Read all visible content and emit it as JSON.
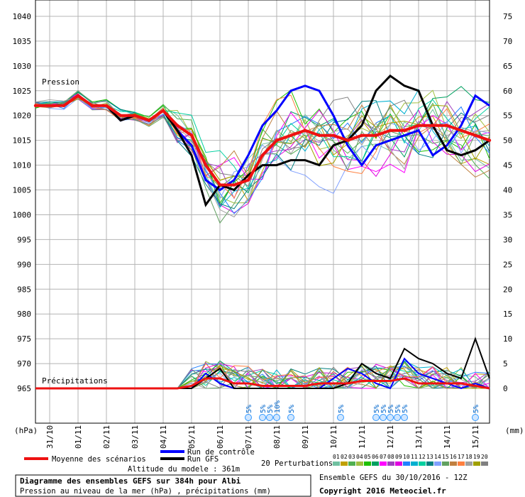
{
  "chart_data": {
    "type": "line",
    "left_axis": {
      "unit": "(hPa)",
      "ticks": [
        1040,
        1035,
        1030,
        1025,
        1020,
        1015,
        1010,
        1005,
        1000,
        995,
        990,
        985,
        980,
        975,
        970,
        965
      ],
      "ylim": [
        965,
        1040
      ]
    },
    "right_axis": {
      "unit": "(mm)",
      "ticks": [
        75,
        70,
        65,
        60,
        55,
        50,
        45,
        40,
        35,
        30,
        25,
        20,
        15,
        10,
        5,
        0
      ],
      "ylim": [
        0,
        75
      ]
    },
    "x_axis": {
      "unit": "hours",
      "xlim": [
        0,
        384
      ],
      "tick_labels": [
        "31/10",
        "01/11",
        "02/11",
        "03/11",
        "04/11",
        "05/11",
        "06/11",
        "07/11",
        "08/11",
        "09/11",
        "10/11",
        "11/11",
        "12/11",
        "13/11",
        "14/11",
        "15/11"
      ],
      "tick_hours": [
        12,
        36,
        60,
        84,
        108,
        132,
        156,
        180,
        204,
        228,
        252,
        276,
        300,
        324,
        348,
        372
      ]
    },
    "panel_labels": {
      "pressure": "Pression",
      "precip": "Précipitations"
    },
    "snow_markers": [
      {
        "hour": 180,
        "label": "5%"
      },
      {
        "hour": 192,
        "label": "5%"
      },
      {
        "hour": 198,
        "label": "5%"
      },
      {
        "hour": 204,
        "label": "10%"
      },
      {
        "hour": 216,
        "label": "5%"
      },
      {
        "hour": 258,
        "label": "5%"
      },
      {
        "hour": 288,
        "label": "5%"
      },
      {
        "hour": 294,
        "label": "5%"
      },
      {
        "hour": 300,
        "label": "5%"
      },
      {
        "hour": 306,
        "label": "5%"
      },
      {
        "hour": 312,
        "label": "5%"
      },
      {
        "hour": 372,
        "label": "5%"
      }
    ],
    "series": [
      {
        "name": "Moyenne des scénarios",
        "color": "#ee1111",
        "x": [
          0,
          12,
          24,
          36,
          48,
          60,
          72,
          84,
          96,
          108,
          120,
          132,
          144,
          156,
          168,
          180,
          192,
          204,
          216,
          228,
          240,
          252,
          264,
          276,
          288,
          300,
          312,
          324,
          336,
          348,
          360,
          372,
          384
        ],
        "values": [
          1022,
          1022,
          1022,
          1024,
          1022,
          1022,
          1020,
          1020,
          1019,
          1021,
          1018,
          1016,
          1010,
          1006,
          1006,
          1007,
          1012,
          1015,
          1016,
          1017,
          1016,
          1016,
          1015,
          1016,
          1016,
          1017,
          1017,
          1018,
          1018,
          1018,
          1017,
          1016,
          1015
        ],
        "precip": [
          0,
          0,
          0,
          0,
          0,
          0,
          0,
          0,
          0,
          0,
          0,
          0.5,
          2,
          2,
          1,
          1,
          0.5,
          0.5,
          0.5,
          0.5,
          1,
          1,
          1,
          1.5,
          1.5,
          1.5,
          2,
          1,
          1,
          1,
          1,
          0.5,
          0
        ]
      },
      {
        "name": "Run de contrôle",
        "color": "#0000ff",
        "x": [
          0,
          12,
          24,
          36,
          48,
          60,
          72,
          84,
          96,
          108,
          120,
          132,
          144,
          156,
          168,
          180,
          192,
          204,
          216,
          228,
          240,
          252,
          264,
          276,
          288,
          300,
          312,
          324,
          336,
          348,
          360,
          372,
          384
        ],
        "values": [
          1022,
          1022,
          1022,
          1024,
          1022,
          1022,
          1019,
          1020,
          1019,
          1021,
          1017,
          1014,
          1007,
          1005,
          1007,
          1012,
          1018,
          1021,
          1025,
          1026,
          1025,
          1020,
          1014,
          1010,
          1014,
          1015,
          1016,
          1017,
          1012,
          1014,
          1018,
          1024,
          1022
        ],
        "precip": [
          0,
          0,
          0,
          0,
          0,
          0,
          0,
          0,
          0,
          0,
          0,
          0,
          3,
          1,
          0,
          0,
          0,
          0,
          0,
          0,
          0,
          2,
          4,
          3,
          1,
          0,
          6,
          3,
          2,
          1,
          0,
          1,
          0
        ]
      },
      {
        "name": "Run GFS",
        "color": "#000000",
        "x": [
          0,
          12,
          24,
          36,
          48,
          60,
          72,
          84,
          96,
          108,
          120,
          132,
          144,
          156,
          168,
          180,
          192,
          204,
          216,
          228,
          240,
          252,
          264,
          276,
          288,
          300,
          312,
          324,
          336,
          348,
          360,
          372,
          384
        ],
        "values": [
          1022,
          1022,
          1022,
          1024,
          1022,
          1022,
          1019,
          1020,
          1019,
          1021,
          1017,
          1012,
          1002,
          1006,
          1005,
          1008,
          1010,
          1010,
          1011,
          1011,
          1010,
          1014,
          1015,
          1018,
          1025,
          1028,
          1026,
          1025,
          1018,
          1013,
          1012,
          1013,
          1015
        ],
        "precip": [
          0,
          0,
          0,
          0,
          0,
          0,
          0,
          0,
          0,
          0,
          0,
          0,
          2,
          4,
          0,
          0,
          0,
          0,
          0,
          0,
          0,
          0,
          1,
          5,
          3,
          2,
          8,
          6,
          5,
          3,
          2,
          10,
          2
        ]
      }
    ],
    "perturbations": {
      "label": "20 Perturbations",
      "count": 20,
      "ids": [
        "01",
        "02",
        "03",
        "04",
        "05",
        "06",
        "07",
        "08",
        "09",
        "10",
        "11",
        "12",
        "13",
        "14",
        "15",
        "16",
        "17",
        "18",
        "19",
        "20"
      ],
      "colors": [
        "#70c0a0",
        "#c0a000",
        "#50b050",
        "#a0c040",
        "#20c000",
        "#00a060",
        "#ff00ff",
        "#a040c0",
        "#e000e0",
        "#2080ff",
        "#00b0d0",
        "#00d0a0",
        "#008080",
        "#80a0ff",
        "#60a060",
        "#c08040",
        "#ff8040",
        "#a0a0a0",
        "#a0a000",
        "#808080"
      ]
    },
    "legend": {
      "mean": "Moyenne des scénarios",
      "control": "Run de contrôle",
      "gfs": "Run GFS",
      "altitude": "Altitude du modele : 361m"
    },
    "footer": {
      "title": "Diagramme des ensembles GEFS sur 384h pour Albi",
      "subtitle": "Pression au niveau de la mer (hPa) , précipitations (mm)",
      "run": "Ensemble GEFS du 30/10/2016 - 12Z",
      "copyright": "Copyright 2016 Meteociel.fr"
    }
  }
}
